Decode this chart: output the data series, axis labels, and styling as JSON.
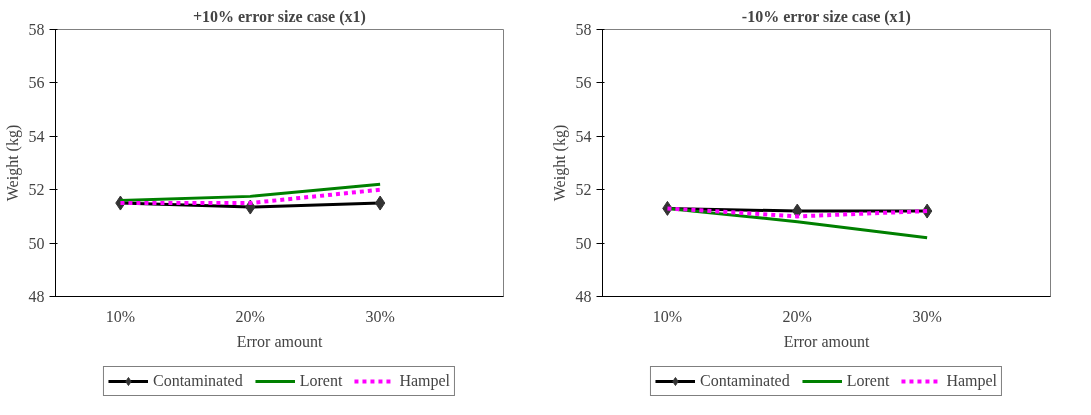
{
  "chart_data": [
    {
      "type": "line",
      "title": "+10% error size case (x1)",
      "xlabel": "Error amount",
      "ylabel": "Weight (kg)",
      "categories": [
        "10%",
        "20%",
        "30%"
      ],
      "ylim": [
        48,
        58
      ],
      "yticks": [
        48,
        50,
        52,
        54,
        56,
        58
      ],
      "grid": false,
      "legend": "bottom",
      "series": [
        {
          "name": "Contaminated",
          "color": "#000000",
          "values": [
            51.5,
            51.35,
            51.5
          ],
          "marker": "diamond",
          "line_style": "solid"
        },
        {
          "name": "Lorent",
          "color": "#008000",
          "values": [
            51.6,
            51.75,
            52.2
          ],
          "marker": "none",
          "line_style": "solid"
        },
        {
          "name": "Hampel",
          "color": "#ff00ff",
          "values": [
            51.5,
            51.5,
            52.0
          ],
          "marker": "none",
          "line_style": "dotted"
        }
      ]
    },
    {
      "type": "line",
      "title": "-10% error size case (x1)",
      "xlabel": "Error amount",
      "ylabel": "Weight (kg)",
      "categories": [
        "10%",
        "20%",
        "30%"
      ],
      "ylim": [
        48,
        58
      ],
      "yticks": [
        48,
        50,
        52,
        54,
        56,
        58
      ],
      "grid": false,
      "legend": "bottom",
      "series": [
        {
          "name": "Contaminated",
          "color": "#000000",
          "values": [
            51.3,
            51.2,
            51.2
          ],
          "marker": "diamond",
          "line_style": "solid"
        },
        {
          "name": "Lorent",
          "color": "#008000",
          "values": [
            51.3,
            50.8,
            50.2
          ],
          "marker": "none",
          "line_style": "solid"
        },
        {
          "name": "Hampel",
          "color": "#ff00ff",
          "values": [
            51.3,
            51.0,
            51.2
          ],
          "marker": "none",
          "line_style": "dotted"
        }
      ]
    }
  ]
}
